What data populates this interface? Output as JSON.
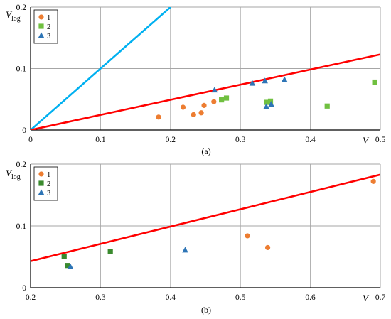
{
  "chart_data": [
    {
      "type": "scatter",
      "panel_label": "(a)",
      "xlabel": "V",
      "ylabel": "V",
      "ylabel_sub": "log",
      "xlim": [
        0,
        0.5
      ],
      "ylim": [
        0,
        0.2
      ],
      "x_ticks": [
        "0",
        "0.1",
        "0.2",
        "0.3",
        "0.4",
        "0.5"
      ],
      "y_ticks": [
        "0",
        "0.1",
        "0.2"
      ],
      "grid": true,
      "legend_position": "top-left",
      "series": [
        {
          "name": "1",
          "marker": "circle",
          "color": "#ED7D31",
          "points": [
            [
              0.183,
              0.021
            ],
            [
              0.218,
              0.037
            ],
            [
              0.233,
              0.025
            ],
            [
              0.244,
              0.028
            ],
            [
              0.248,
              0.04
            ],
            [
              0.262,
              0.046
            ]
          ]
        },
        {
          "name": "2",
          "marker": "square",
          "color": "#70C040",
          "points": [
            [
              0.273,
              0.049
            ],
            [
              0.28,
              0.052
            ],
            [
              0.337,
              0.045
            ],
            [
              0.343,
              0.047
            ],
            [
              0.424,
              0.039
            ],
            [
              0.492,
              0.078
            ]
          ]
        },
        {
          "name": "3",
          "marker": "triangle",
          "color": "#2E75B6",
          "points": [
            [
              0.263,
              0.065
            ],
            [
              0.317,
              0.076
            ],
            [
              0.335,
              0.08
            ],
            [
              0.337,
              0.038
            ],
            [
              0.344,
              0.042
            ],
            [
              0.363,
              0.082
            ]
          ]
        }
      ],
      "lines": [
        {
          "color": "#00B0F0",
          "points": [
            [
              0,
              0
            ],
            [
              0.2,
              0.2
            ]
          ]
        },
        {
          "color": "#FF0000",
          "points": [
            [
              0,
              0
            ],
            [
              0.5,
              0.123
            ]
          ]
        }
      ]
    },
    {
      "type": "scatter",
      "panel_label": "(b)",
      "xlabel": "V",
      "ylabel": "V",
      "ylabel_sub": "log",
      "xlim": [
        0.2,
        0.7
      ],
      "ylim": [
        0,
        0.2
      ],
      "x_ticks": [
        "0.2",
        "0.3",
        "0.4",
        "0.5",
        "0.6",
        "0.7"
      ],
      "y_ticks": [
        "0",
        "0.1",
        "0.2"
      ],
      "grid": true,
      "legend_position": "top-left",
      "series": [
        {
          "name": "1",
          "marker": "circle",
          "color": "#ED7D31",
          "points": [
            [
              0.51,
              0.084
            ],
            [
              0.539,
              0.065
            ],
            [
              0.69,
              0.172
            ]
          ]
        },
        {
          "name": "2",
          "marker": "square",
          "color": "#3A8A2E",
          "points": [
            [
              0.248,
              0.051
            ],
            [
              0.253,
              0.036
            ],
            [
              0.314,
              0.059
            ]
          ]
        },
        {
          "name": "3",
          "marker": "triangle",
          "color": "#2E75B6",
          "points": [
            [
              0.257,
              0.034
            ],
            [
              0.421,
              0.061
            ]
          ]
        }
      ],
      "lines": [
        {
          "color": "#FF0000",
          "points": [
            [
              0.2,
              0.043
            ],
            [
              0.7,
              0.183
            ]
          ]
        }
      ]
    }
  ]
}
